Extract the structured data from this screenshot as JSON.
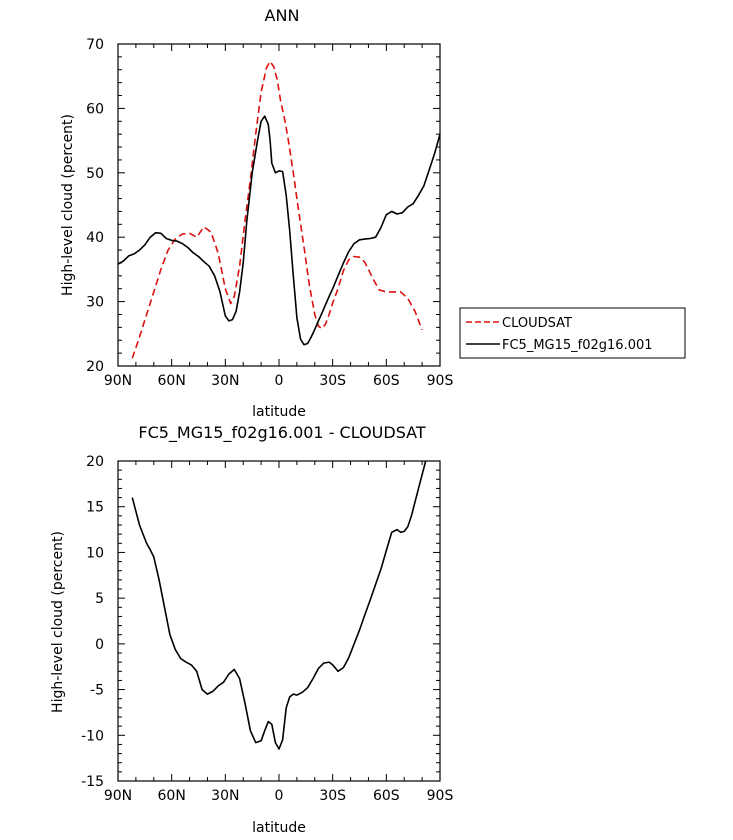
{
  "colors": {
    "cloudsat": "#dd1111",
    "model": "#000000",
    "axis": "#000000"
  },
  "charts": [
    {
      "title": "ANN",
      "ylabel": "High-level cloud (percent)",
      "xlabel": "latitude",
      "legend": [
        {
          "label": "CLOUDSAT",
          "style": "dashed",
          "color": "#dd1111"
        },
        {
          "label": "FC5_MG15_f02g16.001",
          "style": "solid",
          "color": "#000000"
        }
      ]
    },
    {
      "title": "FC5_MG15_f02g16.001 - CLOUDSAT",
      "ylabel": "High-level cloud (percent)",
      "xlabel": "latitude"
    }
  ],
  "chart_data": [
    {
      "type": "line",
      "title": "ANN",
      "xlabel": "latitude",
      "ylabel": "High-level cloud (percent)",
      "xlim": [
        90,
        -90
      ],
      "ylim": [
        20,
        70
      ],
      "x_ticks": [
        90,
        60,
        30,
        0,
        -30,
        -60,
        -90
      ],
      "x_tick_labels": [
        "90N",
        "60N",
        "30N",
        "0",
        "30S",
        "60S",
        "90S"
      ],
      "y_ticks": [
        20,
        30,
        40,
        50,
        60,
        70
      ],
      "y_tick_labels": [
        "20",
        "30",
        "40",
        "50",
        "60",
        "70"
      ],
      "legend_position": "right",
      "series": [
        {
          "name": "CLOUDSAT",
          "style": "dashed",
          "color": "#dd1111",
          "x": [
            82,
            78,
            74,
            70,
            66,
            62,
            58,
            54,
            50,
            46,
            42,
            38,
            34,
            30,
            27,
            25,
            22,
            19,
            16,
            13,
            10,
            7,
            5,
            3,
            1,
            -1,
            -3,
            -5,
            -8,
            -11,
            -14,
            -17,
            -20,
            -22,
            -24,
            -26,
            -28,
            -30,
            -33,
            -36,
            -39,
            -42,
            -45,
            -48,
            -50,
            -53,
            -56,
            -60,
            -64,
            -68,
            -72,
            -76,
            -80
          ],
          "y": [
            21.2,
            24.5,
            28.0,
            31.5,
            35.0,
            38.0,
            39.7,
            40.5,
            40.6,
            40.0,
            41.6,
            40.8,
            37.5,
            32.0,
            29.7,
            30.8,
            35.5,
            42.5,
            49.0,
            56.0,
            62.5,
            66.3,
            67.3,
            66.5,
            64.5,
            61.0,
            58.5,
            55.5,
            50.0,
            44.0,
            38.5,
            32.5,
            28.0,
            26.2,
            25.8,
            26.5,
            28.0,
            29.8,
            32.0,
            34.8,
            36.5,
            37.0,
            36.9,
            36.1,
            35.0,
            33.3,
            31.8,
            31.5,
            31.5,
            31.5,
            30.5,
            28.5,
            25.6
          ]
        },
        {
          "name": "FC5_MG15_f02g16.001",
          "style": "solid",
          "color": "#000000",
          "x": [
            90,
            87,
            84,
            81,
            78,
            75,
            72,
            69,
            66,
            63,
            60,
            57,
            54,
            51,
            48,
            45,
            42,
            39,
            36,
            33,
            30,
            28,
            26,
            24,
            22,
            20,
            18,
            15,
            12,
            10,
            8,
            6,
            5,
            4,
            2,
            0,
            -2,
            -4,
            -6,
            -8,
            -10,
            -12,
            -14,
            -16,
            -18,
            -20,
            -22,
            -24,
            -26,
            -28,
            -30,
            -33,
            -36,
            -39,
            -42,
            -45,
            -48,
            -51,
            -54,
            -57,
            -60,
            -63,
            -66,
            -69,
            -72,
            -75,
            -78,
            -81,
            -84,
            -87,
            -90
          ],
          "y": [
            35.8,
            36.3,
            37.1,
            37.4,
            38.0,
            38.8,
            40.0,
            40.7,
            40.6,
            39.8,
            39.5,
            39.4,
            39.0,
            38.4,
            37.6,
            37.0,
            36.2,
            35.5,
            34.0,
            31.5,
            27.8,
            27.0,
            27.2,
            28.5,
            31.5,
            36.0,
            42.5,
            50.0,
            55.0,
            58.0,
            58.8,
            57.5,
            55.0,
            51.5,
            50.0,
            50.3,
            50.2,
            46.5,
            41.0,
            34.0,
            27.5,
            24.2,
            23.3,
            23.5,
            24.5,
            25.7,
            27.0,
            28.2,
            29.5,
            30.8,
            32.0,
            34.0,
            36.0,
            37.8,
            39.0,
            39.6,
            39.7,
            39.8,
            40.0,
            41.5,
            43.5,
            44.0,
            43.6,
            43.8,
            44.7,
            45.2,
            46.5,
            48.0,
            50.5,
            53.0,
            56.0
          ]
        }
      ]
    },
    {
      "type": "line",
      "title": "FC5_MG15_f02g16.001 - CLOUDSAT",
      "xlabel": "latitude",
      "ylabel": "High-level cloud (percent)",
      "xlim": [
        90,
        -90
      ],
      "ylim": [
        -15,
        20
      ],
      "x_ticks": [
        90,
        60,
        30,
        0,
        -30,
        -60,
        -90
      ],
      "x_tick_labels": [
        "90N",
        "60N",
        "30N",
        "0",
        "30S",
        "60S",
        "90S"
      ],
      "y_ticks": [
        -15,
        -10,
        -5,
        0,
        5,
        10,
        15,
        20
      ],
      "y_tick_labels": [
        "-15",
        "-10",
        "-5",
        "0",
        "5",
        "10",
        "15",
        "20"
      ],
      "series": [
        {
          "style": "solid",
          "color": "#000000",
          "x": [
            82,
            80,
            78,
            76,
            74,
            72,
            70,
            67,
            64,
            61,
            58,
            55,
            52,
            49,
            46,
            43,
            40,
            37,
            34,
            31,
            28,
            25,
            22,
            19,
            16,
            13,
            10,
            8,
            6,
            4,
            2,
            0,
            -2,
            -4,
            -6,
            -8,
            -10,
            -13,
            -16,
            -19,
            -22,
            -25,
            -28,
            -30,
            -33,
            -36,
            -39,
            -42,
            -45,
            -48,
            -51,
            -54,
            -57,
            -60,
            -63,
            -66,
            -68,
            -70,
            -72,
            -74,
            -76,
            -78,
            -80,
            -82
          ],
          "y": [
            16.0,
            14.5,
            13.0,
            12.0,
            11.0,
            10.3,
            9.5,
            7.0,
            4.0,
            1.0,
            -0.6,
            -1.6,
            -2.0,
            -2.3,
            -3.0,
            -5.0,
            -5.5,
            -5.2,
            -4.6,
            -4.2,
            -3.3,
            -2.8,
            -3.8,
            -6.5,
            -9.5,
            -10.8,
            -10.6,
            -9.5,
            -8.5,
            -8.8,
            -10.8,
            -11.5,
            -10.5,
            -7.0,
            -5.8,
            -5.5,
            -5.6,
            -5.3,
            -4.8,
            -3.8,
            -2.7,
            -2.1,
            -2.0,
            -2.3,
            -3.0,
            -2.6,
            -1.5,
            0.0,
            1.5,
            3.2,
            4.8,
            6.5,
            8.2,
            10.2,
            12.2,
            12.5,
            12.2,
            12.3,
            12.8,
            14.0,
            15.5,
            17.0,
            18.5,
            20.0
          ]
        }
      ]
    }
  ]
}
